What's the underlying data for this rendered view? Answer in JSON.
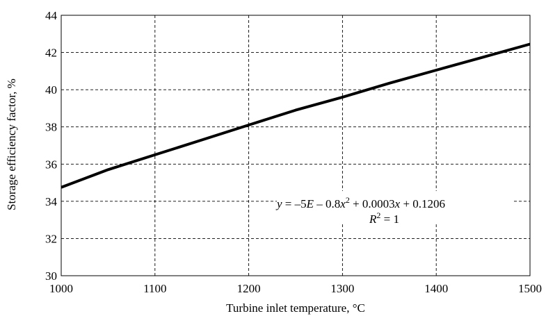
{
  "chart_data": {
    "type": "line",
    "xlabel": "Turbine inlet temperature, °C",
    "ylabel": "Storage efficiency factor, %",
    "xlim": [
      1000,
      1500
    ],
    "ylim": [
      30,
      44
    ],
    "x_ticks": [
      1000,
      1100,
      1200,
      1300,
      1400,
      1500
    ],
    "y_ticks": [
      30,
      32,
      34,
      36,
      38,
      40,
      42,
      44
    ],
    "grid": true,
    "series": [
      {
        "x": [
          1000,
          1050,
          1100,
          1150,
          1200,
          1250,
          1300,
          1350,
          1400,
          1450,
          1500
        ],
        "values": [
          34.75,
          35.7,
          36.5,
          37.3,
          38.1,
          38.9,
          39.6,
          40.35,
          41.05,
          41.75,
          42.45
        ]
      }
    ],
    "annotation": {
      "equation": {
        "prefix": "y",
        "p1": " = –5",
        "p2": "E",
        "p3": " – 0.8",
        "p4": "x",
        "p5": "2",
        "p6": " + 0.0003",
        "p7": "x",
        "p8": " + 0.1206"
      },
      "r2": {
        "prefix": "R",
        "sup": "2",
        "rest": " = 1"
      }
    },
    "colors": {
      "line": "#000000",
      "grid": "#000000",
      "background": "#ffffff"
    }
  }
}
